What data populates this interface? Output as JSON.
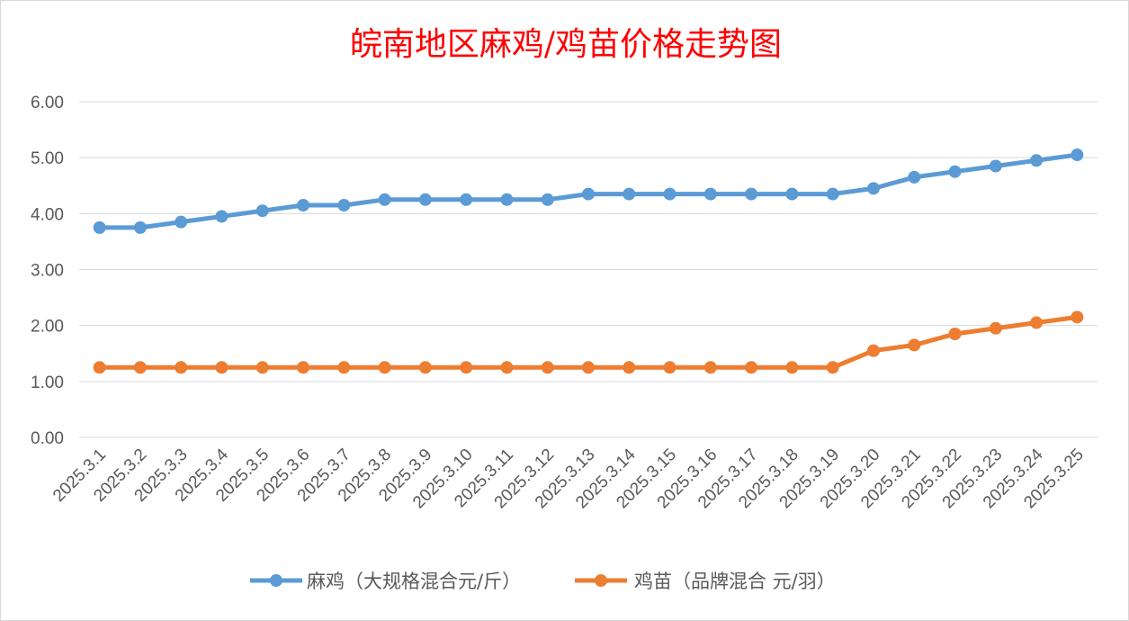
{
  "chart_data": {
    "type": "line",
    "title": "皖南地区麻鸡/鸡苗价格走势图",
    "title_color": "#ff0000",
    "categories": [
      "2025.3.1",
      "2025.3.2",
      "2025.3.3",
      "2025.3.4",
      "2025.3.5",
      "2025.3.6",
      "2025.3.7",
      "2025.3.8",
      "2025.3.9",
      "2025.3.10",
      "2025.3.11",
      "2025.3.12",
      "2025.3.13",
      "2025.3.14",
      "2025.3.15",
      "2025.3.16",
      "2025.3.17",
      "2025.3.18",
      "2025.3.19",
      "2025.3.20",
      "2025.3.21",
      "2025.3.22",
      "2025.3.23",
      "2025.3.24",
      "2025.3.25"
    ],
    "series": [
      {
        "name": "麻鸡（大规格混合元/斤）",
        "color": "#5b9bd5",
        "values": [
          3.75,
          3.75,
          3.85,
          3.95,
          4.05,
          4.15,
          4.15,
          4.25,
          4.25,
          4.25,
          4.25,
          4.25,
          4.35,
          4.35,
          4.35,
          4.35,
          4.35,
          4.35,
          4.35,
          4.45,
          4.65,
          4.75,
          4.85,
          4.95,
          5.05
        ]
      },
      {
        "name": "鸡苗（品牌混合 元/羽）",
        "color": "#ed7d31",
        "values": [
          1.25,
          1.25,
          1.25,
          1.25,
          1.25,
          1.25,
          1.25,
          1.25,
          1.25,
          1.25,
          1.25,
          1.25,
          1.25,
          1.25,
          1.25,
          1.25,
          1.25,
          1.25,
          1.25,
          1.55,
          1.65,
          1.85,
          1.95,
          2.05,
          2.15
        ]
      }
    ],
    "y_ticks": [
      "0.00",
      "1.00",
      "2.00",
      "3.00",
      "4.00",
      "5.00",
      "6.00"
    ],
    "ylim": [
      0,
      6
    ],
    "grid": true,
    "legend_position": "bottom"
  }
}
